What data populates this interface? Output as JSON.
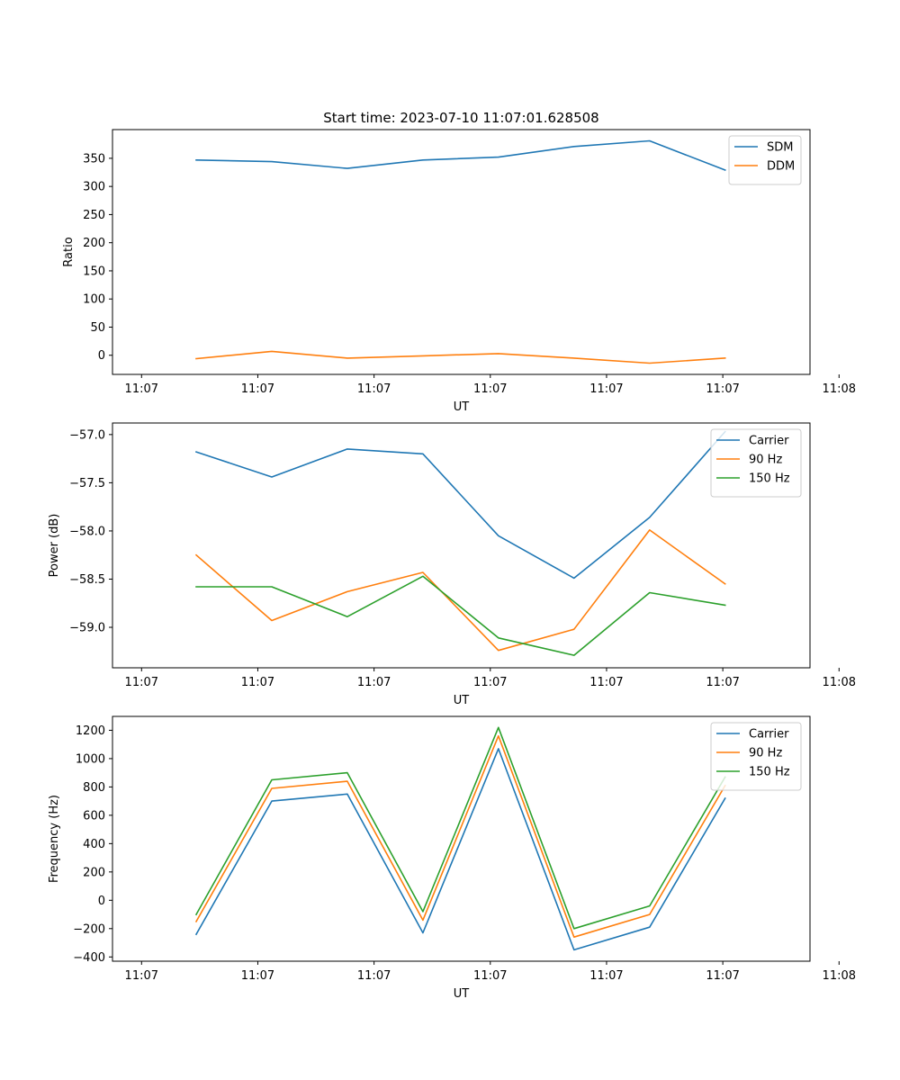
{
  "figure_title": "Start time: 2023-07-10 11:07:01.628508",
  "colors": {
    "blue": "#1f77b4",
    "orange": "#ff7f0e",
    "green": "#2ca02c"
  },
  "chart_data": [
    {
      "type": "line",
      "title": "Start time: 2023-07-10 11:07:01.628508",
      "xlabel": "UT",
      "ylabel": "Ratio",
      "x": [
        0.72,
        1.37,
        2.02,
        2.67,
        3.32,
        3.97,
        4.62,
        5.27
      ],
      "xlim": [
        0,
        6
      ],
      "x_ticks": [
        0.25,
        1.25,
        2.25,
        3.25,
        4.25,
        5.25,
        6.25
      ],
      "x_tick_labels": [
        "11:07",
        "11:07",
        "11:07",
        "11:07",
        "11:07",
        "11:07",
        "11:08"
      ],
      "ylim": [
        -34,
        401
      ],
      "y_ticks": [
        0,
        50,
        100,
        150,
        200,
        250,
        300,
        350
      ],
      "y_tick_labels": [
        "0",
        "50",
        "100",
        "150",
        "200",
        "250",
        "300",
        "350"
      ],
      "legend_position": "top-right",
      "series": [
        {
          "name": "SDM",
          "color": "#1f77b4",
          "values": [
            347,
            344,
            332,
            347,
            352,
            371,
            381,
            329
          ]
        },
        {
          "name": "DDM",
          "color": "#ff7f0e",
          "values": [
            -6,
            7,
            -5,
            -1,
            3,
            -5,
            -14,
            -5
          ]
        }
      ]
    },
    {
      "type": "line",
      "title": "",
      "xlabel": "UT",
      "ylabel": "Power (dB)",
      "x": [
        0.72,
        1.37,
        2.02,
        2.67,
        3.32,
        3.97,
        4.62,
        5.27
      ],
      "xlim": [
        0,
        6
      ],
      "x_ticks": [
        0.25,
        1.25,
        2.25,
        3.25,
        4.25,
        5.25,
        6.25
      ],
      "x_tick_labels": [
        "11:07",
        "11:07",
        "11:07",
        "11:07",
        "11:07",
        "11:07",
        "11:08"
      ],
      "ylim": [
        -59.42,
        -56.88
      ],
      "y_ticks": [
        -57.0,
        -57.5,
        -58.0,
        -58.5,
        -59.0
      ],
      "y_tick_labels": [
        "−57.0",
        "−57.5",
        "−58.0",
        "−58.5",
        "−59.0"
      ],
      "legend_position": "top-right",
      "series": [
        {
          "name": "Carrier",
          "color": "#1f77b4",
          "values": [
            -57.18,
            -57.44,
            -57.15,
            -57.2,
            -58.05,
            -58.49,
            -57.86,
            -56.97
          ]
        },
        {
          "name": "90 Hz",
          "color": "#ff7f0e",
          "values": [
            -58.25,
            -58.93,
            -58.63,
            -58.43,
            -59.24,
            -59.02,
            -57.99,
            -58.55
          ]
        },
        {
          "name": "150 Hz",
          "color": "#2ca02c",
          "values": [
            -58.58,
            -58.58,
            -58.89,
            -58.47,
            -59.11,
            -59.29,
            -58.64,
            -58.77
          ]
        }
      ]
    },
    {
      "type": "line",
      "title": "",
      "xlabel": "UT",
      "ylabel": "Frequency (Hz)",
      "x": [
        0.72,
        1.37,
        2.02,
        2.67,
        3.32,
        3.97,
        4.62,
        5.27
      ],
      "xlim": [
        0,
        6
      ],
      "x_ticks": [
        0.25,
        1.25,
        2.25,
        3.25,
        4.25,
        5.25,
        6.25
      ],
      "x_tick_labels": [
        "11:07",
        "11:07",
        "11:07",
        "11:07",
        "11:07",
        "11:07",
        "11:08"
      ],
      "ylim": [
        -430,
        1298
      ],
      "y_ticks": [
        -400,
        -200,
        0,
        200,
        400,
        600,
        800,
        1000,
        1200
      ],
      "y_tick_labels": [
        "−400",
        "−200",
        "0",
        "200",
        "400",
        "600",
        "800",
        "1000",
        "1200"
      ],
      "legend_position": "top-right",
      "series": [
        {
          "name": "Carrier",
          "color": "#1f77b4",
          "values": [
            -240,
            700,
            750,
            -230,
            1070,
            -350,
            -190,
            720
          ]
        },
        {
          "name": "90 Hz",
          "color": "#ff7f0e",
          "values": [
            -150,
            790,
            840,
            -140,
            1160,
            -260,
            -100,
            810
          ]
        },
        {
          "name": "150 Hz",
          "color": "#2ca02c",
          "values": [
            -100,
            850,
            900,
            -80,
            1220,
            -200,
            -40,
            870
          ]
        }
      ]
    }
  ]
}
